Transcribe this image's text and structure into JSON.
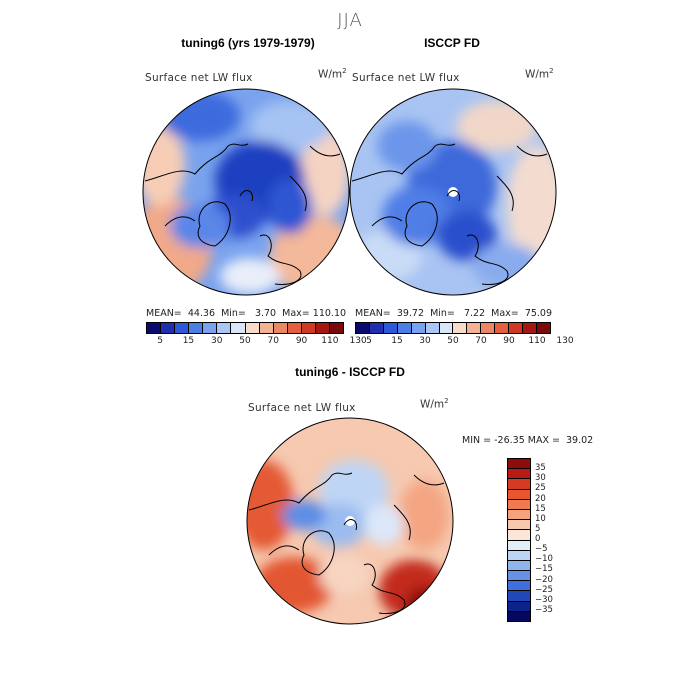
{
  "figure": {
    "season": "JJA"
  },
  "panel_model": {
    "title": "tuning6 (yrs 1979-1979)",
    "variable": "Surface net LW flux",
    "units_base": "W/m",
    "units_exp": "2",
    "stats": {
      "mean_label": "MEAN=",
      "mean": "44.36",
      "min_label": "Min=",
      "min": "3.70",
      "max_label": "Max=",
      "max": "110.10"
    }
  },
  "panel_obs": {
    "title": "ISCCP FD",
    "variable": "Surface net LW flux",
    "units_base": "W/m",
    "units_exp": "2",
    "stats": {
      "mean_label": "MEAN=",
      "mean": "39.72",
      "min_label": "Min=",
      "min": "7.22",
      "max_label": "Max=",
      "max": "75.09"
    }
  },
  "panel_diff": {
    "title": "tuning6 - ISCCP FD",
    "variable": "Surface net LW flux",
    "units_base": "W/m",
    "units_exp": "2",
    "stats": {
      "min_label": "MIN =",
      "min": "-26.35",
      "max_label": "MAX =",
      "max": "39.02"
    }
  },
  "colorbar_abs": {
    "labels": [
      "5",
      "15",
      "30",
      "50",
      "70",
      "90",
      "110",
      "130"
    ],
    "colors": [
      "#0a0a6e",
      "#1f2fb0",
      "#2f58d8",
      "#4b7fe6",
      "#79a3ef",
      "#a9c6f4",
      "#d8e6f8",
      "#f7dcc9",
      "#f3b293",
      "#ec8763",
      "#e45e3f",
      "#d03a25",
      "#a51812",
      "#7a0a0a"
    ]
  },
  "colorbar_diff": {
    "labels": [
      "35",
      "30",
      "25",
      "20",
      "15",
      "10",
      "5",
      "0",
      "−5",
      "−10",
      "−15",
      "−20",
      "−25",
      "−30",
      "−35"
    ],
    "colors": [
      "#8e0c0c",
      "#b81a14",
      "#d63a22",
      "#e8552f",
      "#f07a50",
      "#f4a37d",
      "#f7c8ad",
      "#fbe6d8",
      "#e3eefb",
      "#bdd5f5",
      "#8fb4ee",
      "#6592e6",
      "#3f6fdc",
      "#2147b8",
      "#0d238c",
      "#05085e"
    ]
  },
  "chart_data": [
    {
      "type": "heatmap",
      "title": "tuning6 (yrs 1979-1979)",
      "subtitle": "Surface net LW flux (W/m2), JJA, north polar stereographic",
      "stats": {
        "mean": 44.36,
        "min": 3.7,
        "max": 110.1
      },
      "contour_levels": [
        5,
        15,
        30,
        50,
        70,
        90,
        110,
        130
      ]
    },
    {
      "type": "heatmap",
      "title": "ISCCP FD",
      "subtitle": "Surface net LW flux (W/m2), JJA, north polar stereographic",
      "stats": {
        "mean": 39.72,
        "min": 7.22,
        "max": 75.09
      },
      "contour_levels": [
        5,
        15,
        30,
        50,
        70,
        90,
        110,
        130
      ]
    },
    {
      "type": "heatmap",
      "title": "tuning6 - ISCCP FD",
      "subtitle": "Surface net LW flux difference (W/m2), JJA",
      "stats": {
        "min": -26.35,
        "max": 39.02
      },
      "contour_levels": [
        -35,
        -30,
        -25,
        -20,
        -15,
        -10,
        -5,
        0,
        5,
        10,
        15,
        20,
        25,
        30,
        35
      ]
    }
  ]
}
